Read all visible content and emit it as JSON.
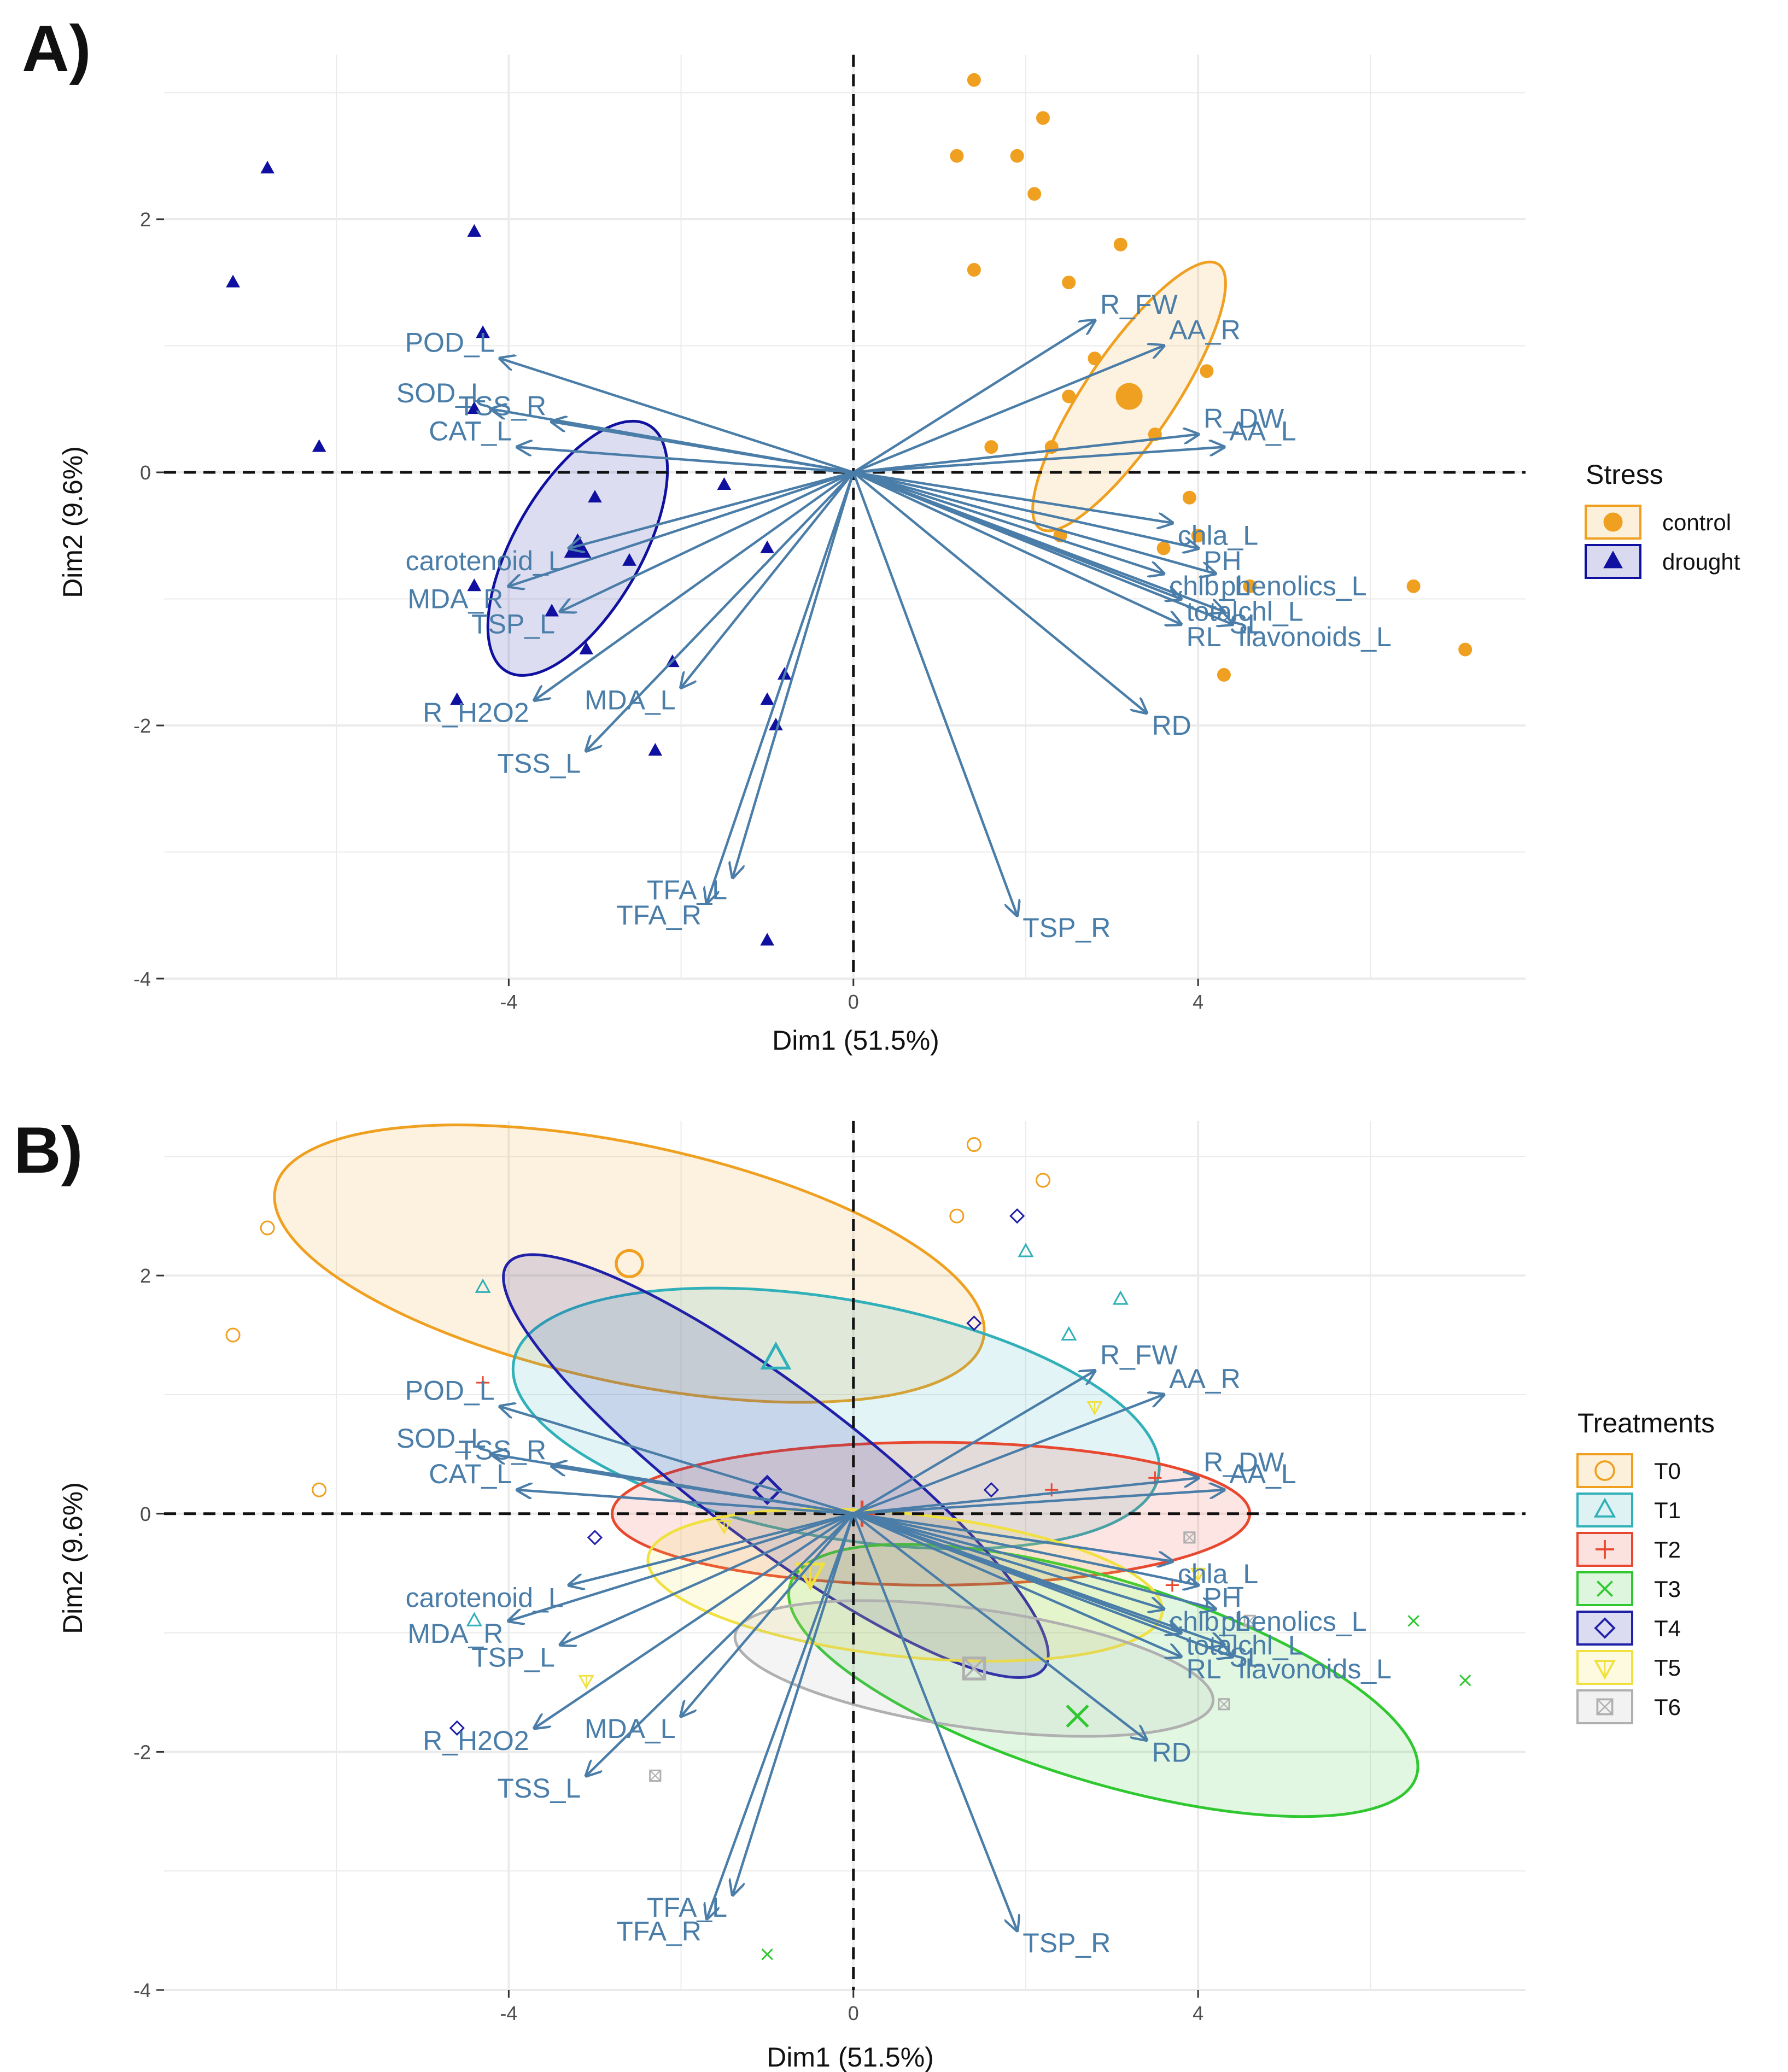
{
  "panels": [
    {
      "label": "A)",
      "x_title": "Dim1 (51.5%)",
      "y_title": "Dim2 (9.6%)",
      "legend": {
        "title": "Stress",
        "items": [
          {
            "label": "control",
            "shape": "circle",
            "color": "#f0a020"
          },
          {
            "label": "drought",
            "shape": "triangle",
            "color": "#1010a0"
          }
        ]
      }
    },
    {
      "label": "B)",
      "x_title": "Dim1 (51.5%)",
      "y_title": "Dim2 (9.6%)",
      "legend": {
        "title": "Treatments",
        "items": [
          {
            "label": "T0",
            "shape": "circle-open",
            "color": "#f0a020"
          },
          {
            "label": "T1",
            "shape": "triangle-open",
            "color": "#30b0b8"
          },
          {
            "label": "T2",
            "shape": "plus",
            "color": "#e84830"
          },
          {
            "label": "T3",
            "shape": "cross",
            "color": "#30c830"
          },
          {
            "label": "T4",
            "shape": "diamond-open",
            "color": "#2020a8"
          },
          {
            "label": "T5",
            "shape": "triangle-down",
            "color": "#f0e040"
          },
          {
            "label": "T6",
            "shape": "square-cross",
            "color": "#b0b0b0"
          }
        ]
      }
    }
  ],
  "chart_data": [
    {
      "type": "scatter",
      "title": "A)",
      "xlabel": "Dim1 (51.5%)",
      "ylabel": "Dim2 (9.6%)",
      "xlim": [
        -8.0,
        7.8
      ],
      "ylim": [
        -4.0,
        3.3
      ],
      "x_ticks": [
        -4,
        0,
        4
      ],
      "y_ticks": [
        -4,
        -2,
        0,
        2
      ],
      "x_tick_labels": [
        "-4",
        "0",
        "4"
      ],
      "y_tick_labels": [
        "-4",
        "-2",
        "0",
        "2"
      ],
      "grid": true,
      "legend_position": "right",
      "variables": [
        {
          "name": "POD_L",
          "x": -4.1,
          "y": 0.9
        },
        {
          "name": "SOD_L",
          "x": -4.2,
          "y": 0.5
        },
        {
          "name": "TSS_R",
          "x": -3.5,
          "y": 0.4
        },
        {
          "name": "CAT_L",
          "x": -3.9,
          "y": 0.2
        },
        {
          "name": "carotenoid_L",
          "x": -3.3,
          "y": -0.6
        },
        {
          "name": "MDA_R",
          "x": -4.0,
          "y": -0.9
        },
        {
          "name": "TSP_L",
          "x": -3.4,
          "y": -1.1
        },
        {
          "name": "R_H2O2",
          "x": -3.7,
          "y": -1.8
        },
        {
          "name": "MDA_L",
          "x": -2.0,
          "y": -1.7
        },
        {
          "name": "TSS_L",
          "x": -3.1,
          "y": -2.2
        },
        {
          "name": "TFA_L",
          "x": -1.4,
          "y": -3.2
        },
        {
          "name": "TFA_R",
          "x": -1.7,
          "y": -3.4
        },
        {
          "name": "TSP_R",
          "x": 1.9,
          "y": -3.5
        },
        {
          "name": "R_FW",
          "x": 2.8,
          "y": 1.2
        },
        {
          "name": "AA_R",
          "x": 3.6,
          "y": 1.0
        },
        {
          "name": "R_DW",
          "x": 4.0,
          "y": 0.3
        },
        {
          "name": "AA_L",
          "x": 4.3,
          "y": 0.2
        },
        {
          "name": "chla_L",
          "x": 3.7,
          "y": -0.4
        },
        {
          "name": "PH",
          "x": 4.0,
          "y": -0.6
        },
        {
          "name": "chlb_L",
          "x": 3.6,
          "y": -0.8
        },
        {
          "name": "phenolics_L",
          "x": 4.2,
          "y": -0.8
        },
        {
          "name": "totalchl_L",
          "x": 3.8,
          "y": -1.0
        },
        {
          "name": "SL",
          "x": 4.3,
          "y": -1.1
        },
        {
          "name": "RL",
          "x": 3.8,
          "y": -1.2
        },
        {
          "name": "flavonoids_L",
          "x": 4.4,
          "y": -1.2
        },
        {
          "name": "RD",
          "x": 3.4,
          "y": -1.9
        }
      ],
      "series": [
        {
          "name": "control",
          "points": [
            [
              1.4,
              3.1
            ],
            [
              2.2,
              2.8
            ],
            [
              1.2,
              2.5
            ],
            [
              1.9,
              2.5
            ],
            [
              2.1,
              2.2
            ],
            [
              3.1,
              1.8
            ],
            [
              1.4,
              1.6
            ],
            [
              2.5,
              1.5
            ],
            [
              2.8,
              0.9
            ],
            [
              4.1,
              0.8
            ],
            [
              3.2,
              0.6
            ],
            [
              2.5,
              0.6
            ],
            [
              3.5,
              0.3
            ],
            [
              1.6,
              0.2
            ],
            [
              2.3,
              0.2
            ],
            [
              3.9,
              -0.2
            ],
            [
              4.0,
              -0.5
            ],
            [
              2.4,
              -0.5
            ],
            [
              3.6,
              -0.6
            ],
            [
              6.5,
              -0.9
            ],
            [
              4.6,
              -0.9
            ],
            [
              4.3,
              -1.6
            ],
            [
              7.1,
              -1.4
            ]
          ],
          "centroid": [
            3.2,
            0.6
          ]
        },
        {
          "name": "drought",
          "points": [
            [
              -6.8,
              2.4
            ],
            [
              -7.2,
              1.5
            ],
            [
              -4.4,
              1.9
            ],
            [
              -4.3,
              1.1
            ],
            [
              -6.2,
              0.2
            ],
            [
              -4.4,
              0.5
            ],
            [
              -3.0,
              -0.2
            ],
            [
              -1.5,
              -0.1
            ],
            [
              -4.4,
              -0.9
            ],
            [
              -2.6,
              -0.7
            ],
            [
              -1.0,
              -0.6
            ],
            [
              -3.5,
              -1.1
            ],
            [
              -3.1,
              -1.4
            ],
            [
              -4.6,
              -1.8
            ],
            [
              -2.1,
              -1.5
            ],
            [
              -0.8,
              -1.6
            ],
            [
              -1.0,
              -1.8
            ],
            [
              -0.9,
              -2.0
            ],
            [
              -2.3,
              -2.2
            ],
            [
              -1.0,
              -3.7
            ]
          ],
          "centroid": [
            -3.2,
            -0.6
          ]
        }
      ],
      "ellipses": [
        {
          "group": "control",
          "center": [
            3.2,
            0.6
          ],
          "rx": 1.85,
          "ry": 0.35,
          "angle_deg": -56
        },
        {
          "group": "drought",
          "center": [
            -3.2,
            -0.6
          ],
          "rx": 1.65,
          "ry": 0.5,
          "angle_deg": -60
        }
      ]
    },
    {
      "type": "scatter",
      "title": "B)",
      "xlabel": "Dim1 (51.5%)",
      "ylabel": "Dim2 (9.6%)",
      "xlim": [
        -8.0,
        7.8
      ],
      "ylim": [
        -4.0,
        3.3
      ],
      "x_ticks": [
        -4,
        0,
        4
      ],
      "y_ticks": [
        -4,
        -2,
        0,
        2
      ],
      "x_tick_labels": [
        "-4",
        "0",
        "4"
      ],
      "y_tick_labels": [
        "-4",
        "-2",
        "0",
        "2"
      ],
      "grid": true,
      "legend_position": "right",
      "variables": [
        {
          "name": "POD_L",
          "x": -4.1,
          "y": 0.9
        },
        {
          "name": "SOD_L",
          "x": -4.2,
          "y": 0.5
        },
        {
          "name": "TSS_R",
          "x": -3.5,
          "y": 0.4
        },
        {
          "name": "CAT_L",
          "x": -3.9,
          "y": 0.2
        },
        {
          "name": "carotenoid_L",
          "x": -3.3,
          "y": -0.6
        },
        {
          "name": "MDA_R",
          "x": -4.0,
          "y": -0.9
        },
        {
          "name": "TSP_L",
          "x": -3.4,
          "y": -1.1
        },
        {
          "name": "R_H2O2",
          "x": -3.7,
          "y": -1.8
        },
        {
          "name": "MDA_L",
          "x": -2.0,
          "y": -1.7
        },
        {
          "name": "TSS_L",
          "x": -3.1,
          "y": -2.2
        },
        {
          "name": "TFA_L",
          "x": -1.4,
          "y": -3.2
        },
        {
          "name": "TFA_R",
          "x": -1.7,
          "y": -3.4
        },
        {
          "name": "TSP_R",
          "x": 1.9,
          "y": -3.5
        },
        {
          "name": "R_FW",
          "x": 2.8,
          "y": 1.2
        },
        {
          "name": "AA_R",
          "x": 3.6,
          "y": 1.0
        },
        {
          "name": "R_DW",
          "x": 4.0,
          "y": 0.3
        },
        {
          "name": "AA_L",
          "x": 4.3,
          "y": 0.2
        },
        {
          "name": "chla_L",
          "x": 3.7,
          "y": -0.4
        },
        {
          "name": "PH",
          "x": 4.0,
          "y": -0.6
        },
        {
          "name": "chlb_L",
          "x": 3.6,
          "y": -0.8
        },
        {
          "name": "phenolics_L",
          "x": 4.2,
          "y": -0.8
        },
        {
          "name": "totalchl_L",
          "x": 3.8,
          "y": -1.0
        },
        {
          "name": "SL",
          "x": 4.3,
          "y": -1.1
        },
        {
          "name": "RL",
          "x": 3.8,
          "y": -1.2
        },
        {
          "name": "flavonoids_L",
          "x": 4.4,
          "y": -1.2
        },
        {
          "name": "RD",
          "x": 3.4,
          "y": -1.9
        }
      ],
      "series": [
        {
          "name": "T0",
          "points": [
            [
              -6.8,
              2.4
            ],
            [
              -7.2,
              1.5
            ],
            [
              -6.2,
              0.2
            ],
            [
              1.4,
              3.1
            ],
            [
              2.2,
              2.8
            ],
            [
              1.2,
              2.5
            ]
          ],
          "centroid": [
            -2.6,
            2.1
          ]
        },
        {
          "name": "T1",
          "points": [
            [
              -4.3,
              1.9
            ],
            [
              2.0,
              2.2
            ],
            [
              3.1,
              1.8
            ],
            [
              2.5,
              1.5
            ],
            [
              -4.4,
              -0.9
            ]
          ],
          "centroid": [
            -0.9,
            1.3
          ]
        },
        {
          "name": "T2",
          "points": [
            [
              -4.3,
              1.1
            ],
            [
              3.5,
              0.3
            ],
            [
              2.3,
              0.2
            ],
            [
              3.7,
              -0.6
            ]
          ],
          "centroid": [
            0.1,
            0.0
          ]
        },
        {
          "name": "T3",
          "points": [
            [
              6.5,
              -0.9
            ],
            [
              7.1,
              -1.4
            ],
            [
              2.6,
              -1.7
            ],
            [
              -1.0,
              -3.7
            ]
          ],
          "centroid": [
            2.6,
            -1.7
          ]
        },
        {
          "name": "T4",
          "points": [
            [
              1.9,
              2.5
            ],
            [
              1.4,
              1.6
            ],
            [
              -3.0,
              -0.2
            ],
            [
              1.6,
              0.2
            ],
            [
              -4.6,
              -1.8
            ]
          ],
          "centroid": [
            -1.0,
            0.2
          ]
        },
        {
          "name": "T5",
          "points": [
            [
              -1.5,
              -0.1
            ],
            [
              -3.1,
              -1.4
            ],
            [
              2.8,
              0.9
            ],
            [
              4.0,
              -0.5
            ]
          ],
          "centroid": [
            -0.5,
            -0.5
          ]
        },
        {
          "name": "T6",
          "points": [
            [
              3.9,
              -0.2
            ],
            [
              4.3,
              -1.6
            ],
            [
              -2.3,
              -2.2
            ],
            [
              4.6,
              -0.9
            ]
          ],
          "centroid": [
            1.4,
            -1.3
          ]
        }
      ],
      "ellipses": [
        {
          "group": "T0",
          "center": [
            -2.6,
            2.1
          ],
          "rx": 4.2,
          "ry": 1.0,
          "angle_deg": 12
        },
        {
          "group": "T1",
          "center": [
            -0.2,
            0.8
          ],
          "rx": 3.8,
          "ry": 1.0,
          "angle_deg": 10
        },
        {
          "group": "T2",
          "center": [
            0.9,
            0.0
          ],
          "rx": 3.7,
          "ry": 0.6,
          "angle_deg": 0
        },
        {
          "group": "T3",
          "center": [
            2.9,
            -1.4
          ],
          "rx": 3.8,
          "ry": 0.85,
          "angle_deg": 17
        },
        {
          "group": "T4",
          "center": [
            -0.9,
            0.4
          ],
          "rx": 3.9,
          "ry": 0.65,
          "angle_deg": 37
        },
        {
          "group": "T5",
          "center": [
            0.6,
            -0.6
          ],
          "rx": 3.0,
          "ry": 0.6,
          "angle_deg": 6
        },
        {
          "group": "T6",
          "center": [
            1.4,
            -1.3
          ],
          "rx": 2.8,
          "ry": 0.5,
          "angle_deg": 8
        }
      ]
    }
  ]
}
